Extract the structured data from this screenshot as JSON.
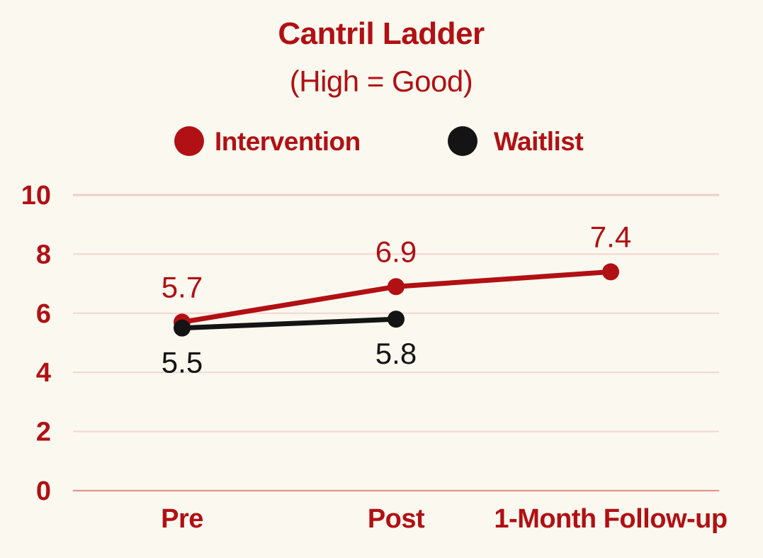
{
  "chart_data": {
    "type": "line",
    "title": "Cantril Ladder",
    "subtitle": "(High = Good)",
    "categories": [
      "Pre",
      "Post",
      "1-Month Follow-up"
    ],
    "series": [
      {
        "name": "Intervention",
        "color": "#B11014",
        "values": [
          5.7,
          6.9,
          7.4
        ],
        "data_labels": [
          "5.7",
          "6.9",
          "7.4"
        ],
        "label_position": "above"
      },
      {
        "name": "Waitlist",
        "color": "#141414",
        "values": [
          5.5,
          5.8,
          null
        ],
        "data_labels": [
          "5.5",
          "5.8"
        ],
        "label_position": "below"
      }
    ],
    "xlabel": "",
    "ylabel": "",
    "ylim": [
      0,
      10
    ],
    "yticks": [
      0,
      2,
      4,
      6,
      8,
      10
    ],
    "grid": true,
    "legend_position": "top-center",
    "colors": {
      "accent_red": "#B11014",
      "series_black": "#141414",
      "gridline": "#F3D8D1",
      "top_gridline": "#EFCDC5",
      "zero_gridline": "#E2948E",
      "background": "#FBF9EF"
    }
  }
}
